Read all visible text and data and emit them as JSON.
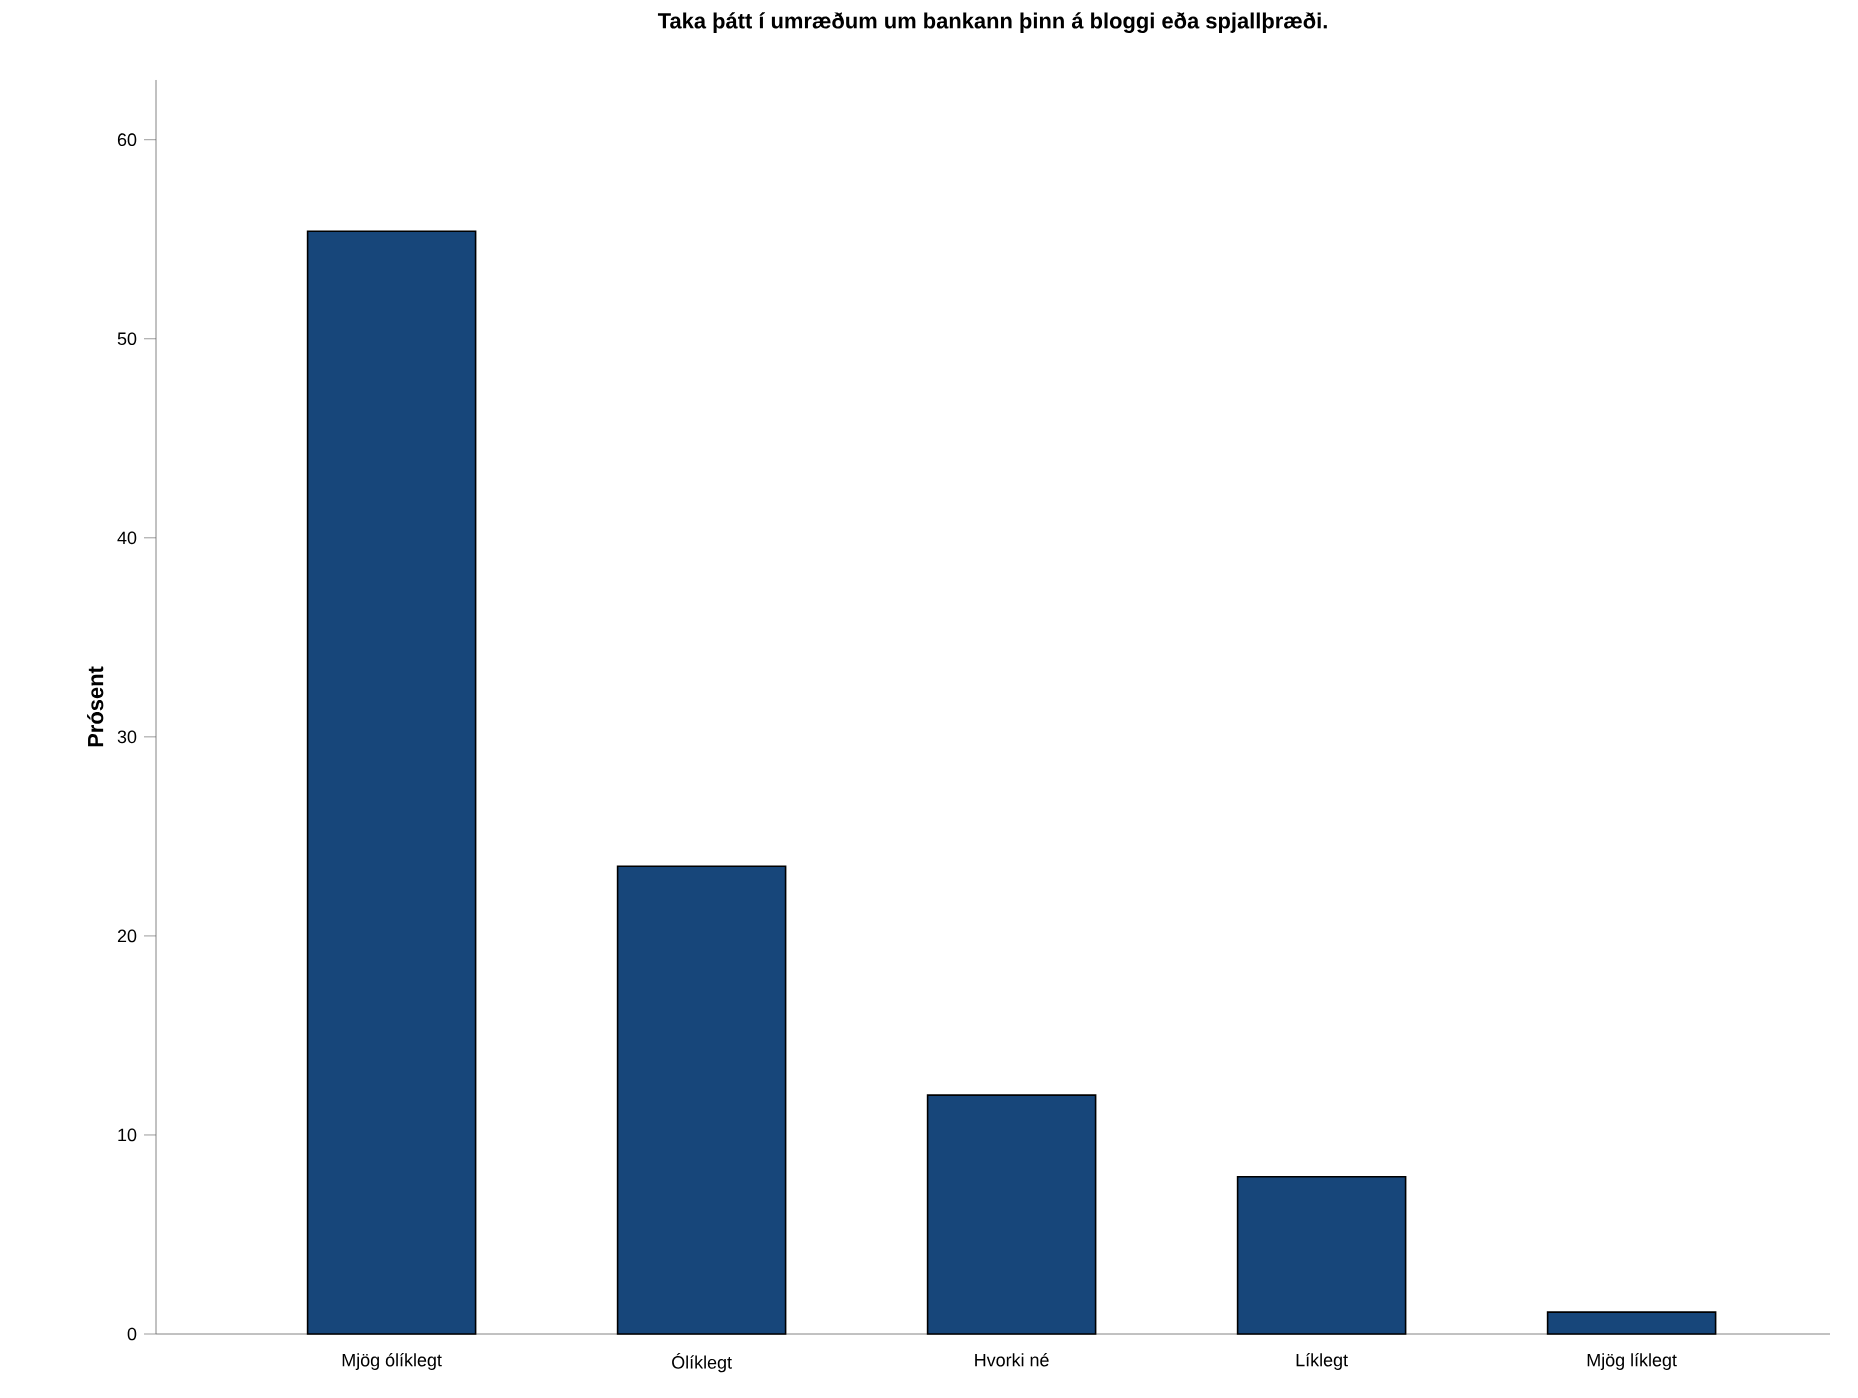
{
  "chart_data": {
    "type": "bar",
    "title": "Taka þátt í umræðum um bankann þinn á bloggi eða spjallþræði.",
    "ylabel": "Prósent",
    "categories": [
      "Mjög ólíklegt",
      "Ólíklegt",
      "Hvorki né",
      "Líklegt",
      "Mjög líklegt"
    ],
    "values": [
      55.4,
      23.5,
      12.0,
      7.9,
      1.1
    ],
    "color": "#17467a",
    "ylim": [
      0,
      63
    ],
    "yticks": [
      0,
      10,
      20,
      30,
      40,
      50,
      60
    ]
  }
}
